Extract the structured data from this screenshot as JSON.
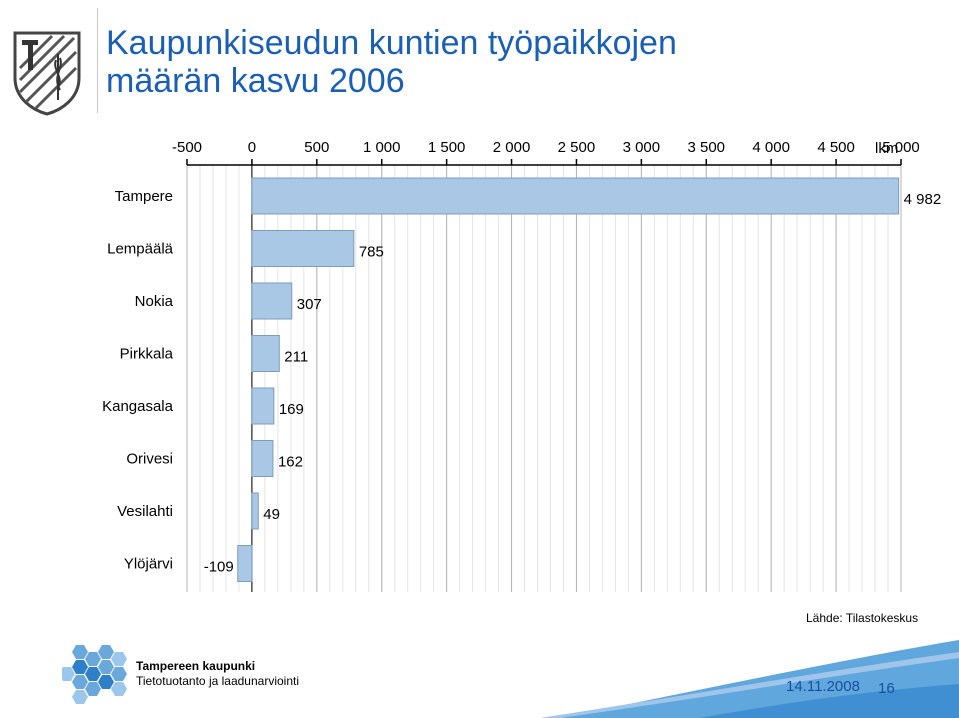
{
  "slide": {
    "title_line1": "Kaupunkiseudun kuntien työpaikkojen",
    "title_line2": "määrän kasvu 2006",
    "source": "Lähde: Tilastokeskus",
    "org": "Tampereen kaupunki",
    "dept": "Tietotuotanto ja laadunarviointi",
    "date": "14.11.2008",
    "page": "16"
  },
  "colors": {
    "bar_fill": "#a9c8e6",
    "bar_stroke": "#7f9db9",
    "title": "#1a5fb4",
    "footer_blue": "#1a4fa0"
  },
  "chart_data": {
    "type": "bar",
    "orientation": "horizontal",
    "unit": "lkm",
    "xlim": [
      -500,
      5000
    ],
    "ticks": [
      -500,
      0,
      500,
      1000,
      1500,
      2000,
      2500,
      3000,
      3500,
      4000,
      4500,
      5000
    ],
    "tick_labels": [
      "-500",
      "0",
      "500",
      "1 000",
      "1 500",
      "2 000",
      "2 500",
      "3 000",
      "3 500",
      "4 000",
      "4 500",
      "5 000"
    ],
    "categories": [
      "Tampere",
      "Lempäälä",
      "Nokia",
      "Pirkkala",
      "Kangasala",
      "Orivesi",
      "Vesilahti",
      "Ylöjärvi"
    ],
    "values": [
      4982,
      785,
      307,
      211,
      169,
      162,
      49,
      -109
    ],
    "value_labels": [
      "4 982",
      "785",
      "307",
      "211",
      "169",
      "162",
      "49",
      "-109"
    ],
    "xaxis_position": "top",
    "grid": true
  }
}
